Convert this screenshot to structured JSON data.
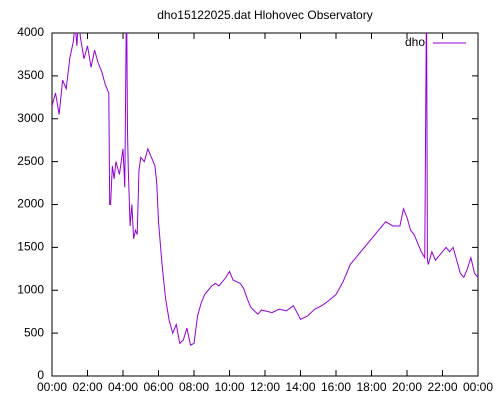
{
  "chart_data": {
    "type": "line",
    "title": "dho15122025.dat Hlohovec Observatory",
    "x": [
      0,
      0.2,
      0.4,
      0.6,
      0.8,
      1.0,
      1.2,
      1.3,
      1.4,
      1.5,
      1.6,
      1.8,
      2.0,
      2.2,
      2.4,
      2.6,
      2.8,
      3.0,
      3.2,
      3.25,
      3.3,
      3.4,
      3.5,
      3.6,
      3.8,
      4.0,
      4.1,
      4.2,
      4.25,
      4.3,
      4.4,
      4.5,
      4.6,
      4.7,
      4.8,
      4.9,
      5.0,
      5.2,
      5.4,
      5.6,
      5.8,
      5.9,
      6.0,
      6.2,
      6.4,
      6.6,
      6.8,
      7.0,
      7.2,
      7.4,
      7.6,
      7.8,
      8.0,
      8.2,
      8.4,
      8.6,
      8.8,
      9.0,
      9.2,
      9.4,
      9.6,
      9.8,
      10.0,
      10.2,
      10.4,
      10.6,
      10.8,
      11.0,
      11.2,
      11.4,
      11.6,
      11.8,
      12.0,
      12.4,
      12.8,
      13.2,
      13.6,
      14.0,
      14.4,
      14.8,
      15.2,
      15.6,
      16.0,
      16.4,
      16.8,
      17.2,
      17.6,
      18.0,
      18.4,
      18.8,
      19.2,
      19.6,
      19.8,
      20.0,
      20.2,
      20.4,
      20.6,
      20.8,
      21.0,
      21.1,
      21.15,
      21.2,
      21.4,
      21.6,
      21.8,
      22.0,
      22.2,
      22.4,
      22.6,
      22.8,
      23.0,
      23.2,
      23.4,
      23.6,
      23.8,
      24.0
    ],
    "series": [
      {
        "name": "dho",
        "color": "#9400d3",
        "values": [
          3150,
          3300,
          3050,
          3450,
          3350,
          3700,
          3900,
          4100,
          3850,
          4200,
          3950,
          3700,
          3850,
          3600,
          3800,
          3650,
          3550,
          3400,
          3300,
          2000,
          2000,
          2450,
          2300,
          2500,
          2350,
          2650,
          2200,
          4500,
          2900,
          2400,
          1750,
          2000,
          1600,
          1700,
          1650,
          2400,
          2550,
          2500,
          2650,
          2550,
          2450,
          2250,
          1800,
          1300,
          900,
          650,
          500,
          600,
          380,
          420,
          560,
          360,
          380,
          700,
          850,
          950,
          1000,
          1050,
          1080,
          1050,
          1100,
          1150,
          1220,
          1120,
          1100,
          1080,
          1020,
          900,
          800,
          760,
          720,
          770,
          760,
          740,
          780,
          760,
          820,
          660,
          700,
          780,
          820,
          880,
          950,
          1100,
          1300,
          1400,
          1500,
          1600,
          1700,
          1800,
          1750,
          1750,
          1950,
          1850,
          1700,
          1650,
          1550,
          1450,
          1380,
          4500,
          1350,
          1300,
          1450,
          1350,
          1400,
          1450,
          1500,
          1450,
          1500,
          1350,
          1200,
          1150,
          1250,
          1380,
          1200,
          1150
        ]
      }
    ],
    "xlim": [
      0,
      24
    ],
    "xticks": [
      {
        "value": 0,
        "label": "00:00"
      },
      {
        "value": 2,
        "label": "02:00"
      },
      {
        "value": 4,
        "label": "04:00"
      },
      {
        "value": 6,
        "label": "06:00"
      },
      {
        "value": 8,
        "label": "08:00"
      },
      {
        "value": 10,
        "label": "10:00"
      },
      {
        "value": 12,
        "label": "12:00"
      },
      {
        "value": 14,
        "label": "14:00"
      },
      {
        "value": 16,
        "label": "16:00"
      },
      {
        "value": 18,
        "label": "18:00"
      },
      {
        "value": 20,
        "label": "20:00"
      },
      {
        "value": 22,
        "label": "22:00"
      },
      {
        "value": 24,
        "label": "00:00"
      }
    ],
    "ylim": [
      0,
      4000
    ],
    "yticks": [
      0,
      500,
      1000,
      1500,
      2000,
      2500,
      3000,
      3500,
      4000
    ],
    "legend": "top-right"
  }
}
